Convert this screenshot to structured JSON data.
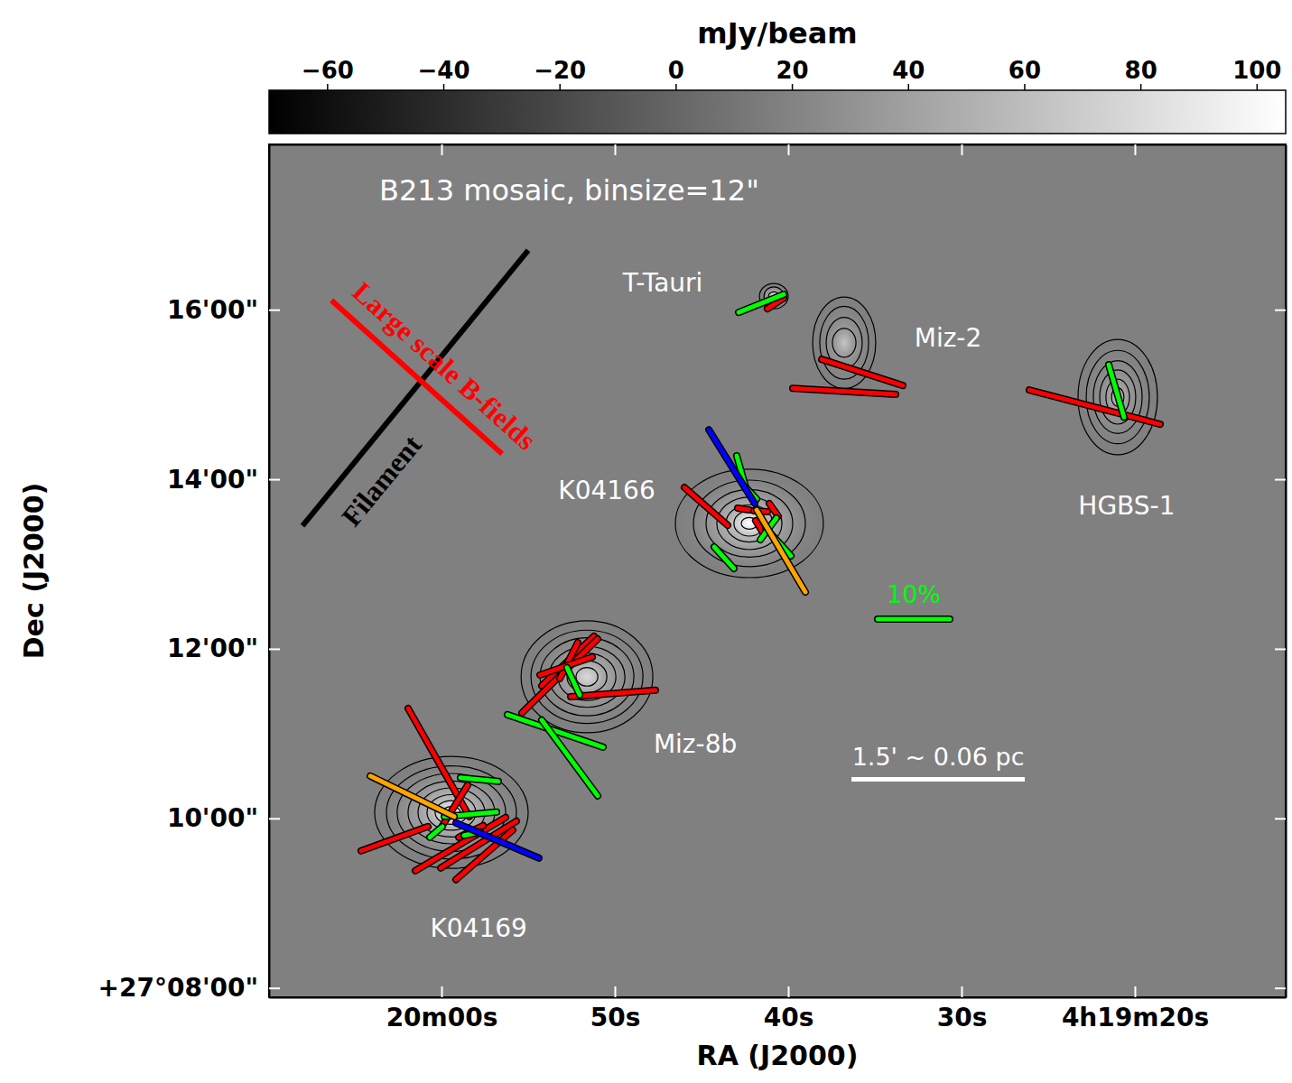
{
  "chart_data": {
    "type": "polarization_map",
    "title": "B213 mosaic, binsize=12\"",
    "x_label": "RA (J2000)",
    "y_label": "Dec (J2000)",
    "xlim": [
      69.95,
      11.3
    ],
    "ylim": [
      7.89,
      17.95
    ],
    "xticks": [
      {
        "value": 60,
        "label": "20m00s"
      },
      {
        "value": 50,
        "label": "50s"
      },
      {
        "value": 40,
        "label": "40s"
      },
      {
        "value": 30,
        "label": "30s"
      },
      {
        "value": 20,
        "label": "4h19m20s"
      }
    ],
    "yticks": [
      {
        "value": 16,
        "label": "16'00\""
      },
      {
        "value": 14,
        "label": "14'00\""
      },
      {
        "value": 12,
        "label": "12'00\""
      },
      {
        "value": 10,
        "label": "10'00\""
      },
      {
        "value": 8,
        "label": "+27°08'00\""
      }
    ],
    "colorbar": {
      "label": "mJy/beam",
      "lim": [
        -70,
        105
      ],
      "ticks": [
        {
          "value": -60,
          "label": "−60"
        },
        {
          "value": -40,
          "label": "−40"
        },
        {
          "value": -20,
          "label": "−20"
        },
        0,
        20,
        40,
        60,
        80,
        100
      ]
    },
    "background": 18,
    "sources": [
      {
        "name": "T-Tauri",
        "x": 40.83,
        "y": 16.16,
        "peak": 105,
        "label_x": 47.24,
        "label_y": 16.3,
        "contour_rx": [
          0.83,
          0.57,
          0.31
        ],
        "contour_ry": [
          0.15,
          0.11,
          0.05
        ]
      },
      {
        "name": "Miz-2",
        "x": 36.77,
        "y": 15.61,
        "peak": 65,
        "label_x": 30.78,
        "label_y": 15.65,
        "contour_rx": [
          1.82,
          1.41,
          1.04,
          0.68
        ],
        "contour_ry": [
          0.54,
          0.43,
          0.3,
          0.17
        ]
      },
      {
        "name": "HGBS-1",
        "x": 20.99,
        "y": 14.97,
        "peak": 60,
        "label_x": 20.47,
        "label_y": 13.67,
        "contour_rx": [
          2.29,
          1.82,
          1.41,
          1.04,
          0.68,
          0.36
        ],
        "contour_ry": [
          0.68,
          0.55,
          0.43,
          0.32,
          0.21,
          0.11
        ]
      },
      {
        "name": "K04166",
        "x": 42.24,
        "y": 13.48,
        "peak": 105,
        "label_x": 50.47,
        "label_y": 13.85,
        "contour_rx": [
          4.27,
          3.23,
          2.5,
          1.88,
          1.35,
          0.89,
          0.47
        ],
        "contour_ry": [
          0.64,
          0.51,
          0.4,
          0.31,
          0.22,
          0.15,
          0.07
        ]
      },
      {
        "name": "Miz-8b",
        "x": 51.61,
        "y": 11.67,
        "peak": 80,
        "label_x": 45.36,
        "label_y": 10.86,
        "contour_rx": [
          3.8,
          3.23,
          2.71,
          2.19,
          1.67,
          1.15,
          0.63
        ],
        "contour_ry": [
          0.66,
          0.55,
          0.46,
          0.36,
          0.28,
          0.19,
          0.11
        ]
      },
      {
        "name": "K04169",
        "x": 59.43,
        "y": 10.07,
        "peak": 105,
        "label_x": 57.86,
        "label_y": 8.69,
        "contour_rx": [
          4.43,
          3.75,
          3.13,
          2.5,
          1.93,
          1.41,
          0.94,
          0.52
        ],
        "contour_ry": [
          0.66,
          0.55,
          0.46,
          0.37,
          0.29,
          0.21,
          0.14,
          0.07
        ]
      }
    ],
    "series": [
      {
        "color": "#ff0000",
        "segments": [
          {
            "x": [
              26.09,
              18.54
            ],
            "y": [
              15.053,
              14.649
            ]
          },
          {
            "x": [
              38.07,
              33.39
            ],
            "y": [
              15.415,
              15.106
            ]
          },
          {
            "x": [
              39.74,
              33.8
            ],
            "y": [
              15.074,
              15
            ]
          },
          {
            "x": [
              41.2,
              40.26
            ],
            "y": [
              16.011,
              16.138
            ]
          },
          {
            "x": [
              45.99,
              43.49
            ],
            "y": [
              13.904,
              13.457
            ]
          },
          {
            "x": [
              42.92,
              42.24
            ],
            "y": [
              13.66,
              13.638
            ]
          },
          {
            "x": [
              41.98,
              41.2
            ],
            "y": [
              13.628,
              13.617
            ]
          },
          {
            "x": [
              41.09,
              40.57
            ],
            "y": [
              13.713,
              13.564
            ]
          },
          {
            "x": [
              41.88,
              41.46
            ],
            "y": [
              13.511,
              13.372
            ]
          },
          {
            "x": [
              54.22,
              51.2
            ],
            "y": [
              11.564,
              12.149
            ]
          },
          {
            "x": [
              55.36,
              50.99
            ],
            "y": [
              11.245,
              12.117
            ]
          },
          {
            "x": [
              53.18,
              52.14
            ],
            "y": [
              11.649,
              12.074
            ]
          },
          {
            "x": [
              52.55,
              47.66
            ],
            "y": [
              11.436,
              11.511
            ]
          },
          {
            "x": [
              54.32,
              51.3
            ],
            "y": [
              11.691,
              11.904
            ]
          },
          {
            "x": [
              61.93,
              58.39
            ],
            "y": [
              11.298,
              10.021
            ]
          },
          {
            "x": [
              64.64,
              60.78
            ],
            "y": [
              9.617,
              9.904
            ]
          },
          {
            "x": [
              61.51,
              56.3
            ],
            "y": [
              9.383,
              10.011
            ]
          },
          {
            "x": [
              60.05,
              55.68
            ],
            "y": [
              9.415,
              9.968
            ]
          },
          {
            "x": [
              59.17,
              55.89
            ],
            "y": [
              9.277,
              9.862
            ]
          },
          {
            "x": [
              59.95,
              58.49
            ],
            "y": [
              9.915,
              10.394
            ]
          },
          {
            "x": [
              59.01,
              57.6
            ],
            "y": [
              9.777,
              9.915
            ]
          }
        ]
      },
      {
        "color": "#00ff00",
        "segments": [
          {
            "x": [
              42.86,
              40.26
            ],
            "y": [
              15.968,
              16.181
            ]
          },
          {
            "x": [
              21.51,
              20.63
            ],
            "y": [
              15.351,
              14.734
            ]
          },
          {
            "x": [
              42.97,
              42.45
            ],
            "y": [
              14.277,
              13.904
            ]
          },
          {
            "x": [
              42.45,
              41.82
            ],
            "y": [
              13.904,
              13.766
            ]
          },
          {
            "x": [
              41.3,
              39.84
            ],
            "y": [
              13.426,
              13.096
            ]
          },
          {
            "x": [
              44.27,
              43.13
            ],
            "y": [
              13.202,
              12.947
            ]
          },
          {
            "x": [
              41.61,
              40.68
            ],
            "y": [
              13.287,
              13.543
            ]
          },
          {
            "x": [
              56.2,
              50.68
            ],
            "y": [
              11.223,
              10.84
            ]
          },
          {
            "x": [
              54.22,
              50.99
            ],
            "y": [
              11.16,
              10.266
            ]
          },
          {
            "x": [
              52.76,
              52.03
            ],
            "y": [
              11.777,
              11.457
            ]
          },
          {
            "x": [
              58.91,
              56.72
            ],
            "y": [
              10.479,
              10.436
            ]
          },
          {
            "x": [
              59.84,
              56.82
            ],
            "y": [
              10.021,
              10.074
            ]
          },
          {
            "x": [
              60.68,
              59.95
            ],
            "y": [
              9.777,
              9.904
            ]
          },
          {
            "x": [
              58.7,
              57.76
            ],
            "y": [
              9.798,
              9.84
            ]
          }
        ]
      },
      {
        "color": "#0000ff",
        "segments": [
          {
            "x": [
              44.58,
              41.93
            ],
            "y": [
              14.585,
              13.713
            ]
          },
          {
            "x": [
              59.17,
              54.38
            ],
            "y": [
              9.947,
              9.532
            ]
          }
        ]
      },
      {
        "color": "#ffa500",
        "segments": [
          {
            "x": [
              41.82,
              39.01
            ],
            "y": [
              13.638,
              12.67
            ]
          },
          {
            "x": [
              64.11,
              59.27
            ],
            "y": [
              10.5,
              10.021
            ]
          }
        ]
      }
    ],
    "annotations": [
      {
        "text": "Filament",
        "color": "#000000",
        "x": [
          68.02,
          55.0
        ],
        "y": [
          13.45,
          16.7
        ],
        "label_x": 63.33,
        "label_y": 13.96
      },
      {
        "text": "Large scale B-fields",
        "color": "#ff0000",
        "x": [
          66.35,
          56.51
        ],
        "y": [
          16.11,
          14.3
        ],
        "label_x": 59.95,
        "label_y": 15.31
      }
    ],
    "reference_vector": {
      "label": "10%",
      "color": "#00ff00",
      "x": [
        34.84,
        30.68
      ],
      "y": [
        12.35,
        12.35
      ]
    },
    "scale_bar": {
      "label": "1.5' ~ 0.06 pc",
      "x": [
        36.35,
        26.35
      ],
      "y": [
        10.46,
        10.46
      ]
    }
  }
}
